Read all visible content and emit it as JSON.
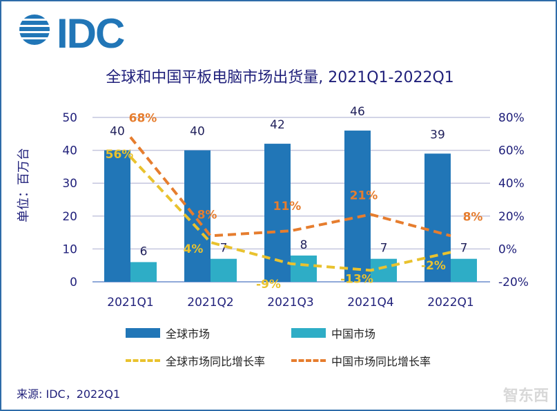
{
  "logo": "IDC",
  "chart_data": {
    "type": "bar",
    "title": "全球和中国平板电脑市场出货量, 2021Q1-2022Q1",
    "ylabel": "单位：百万台",
    "categories": [
      "2021Q1",
      "2021Q2",
      "2021Q3",
      "2021Q4",
      "2022Q1"
    ],
    "ylim": [
      0,
      50
    ],
    "y_ticks": [
      "0",
      "10",
      "20",
      "30",
      "40",
      "50"
    ],
    "y2lim": [
      -20,
      80
    ],
    "y2_ticks": [
      "-20%",
      "0%",
      "20%",
      "40%",
      "60%",
      "80%"
    ],
    "series": [
      {
        "name": "全球市场",
        "type": "bar",
        "axis": "left",
        "color": "#2176b7",
        "values": [
          40,
          40,
          42,
          46,
          39
        ],
        "labels": [
          "40",
          "40",
          "42",
          "46",
          "39"
        ]
      },
      {
        "name": "中国市场",
        "type": "bar",
        "axis": "left",
        "color": "#2eadc6",
        "values": [
          6,
          7,
          8,
          7,
          7
        ],
        "labels": [
          "6",
          "7",
          "8",
          "7",
          "7"
        ]
      },
      {
        "name": "全球市场同比增长率",
        "type": "line",
        "axis": "right",
        "color": "#e9c22e",
        "values": [
          56,
          4,
          -9,
          -13,
          -2
        ],
        "labels": [
          "56%",
          "4%",
          "-9%",
          "-13%",
          "-2%"
        ]
      },
      {
        "name": "中国市场同比增长率",
        "type": "line",
        "axis": "right",
        "color": "#e67d2e",
        "values": [
          68,
          8,
          11,
          21,
          8
        ],
        "labels": [
          "68%",
          "8%",
          "11%",
          "21%",
          "8%"
        ]
      }
    ],
    "legend": "bottom",
    "grid": true
  },
  "source": "来源: IDC，2022Q1",
  "watermark": "智东西"
}
